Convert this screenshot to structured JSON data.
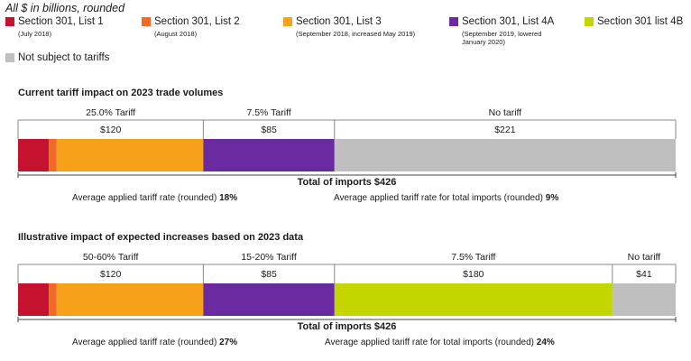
{
  "note": "All $ in billions, rounded",
  "colors": {
    "list1": "#c4122f",
    "list2": "#f26a21",
    "list3": "#f7a11a",
    "list4a": "#6a2aa0",
    "list4b": "#c3d600",
    "none": "#bfbfbf"
  },
  "legend": [
    {
      "label": "Section 301, List 1",
      "sub": "(July 2018)",
      "color_key": "list1"
    },
    {
      "label": "Section 301, List 2",
      "sub": "(August 2018)",
      "color_key": "list2"
    },
    {
      "label": "Section 301, List 3",
      "sub": "(September 2018, increased May 2019)",
      "color_key": "list3"
    },
    {
      "label": "Section 301, List 4A",
      "sub": "(September 2019, lowered January 2020)",
      "color_key": "list4a"
    },
    {
      "label": "Section 301 list 4B",
      "sub": "",
      "color_key": "list4b"
    },
    {
      "label": "Not subject to tariffs",
      "sub": "",
      "color_key": "none"
    }
  ],
  "chart_data": [
    {
      "type": "bar",
      "title": "Current tariff impact on 2023 trade volumes",
      "total": 426,
      "segments": [
        {
          "color_key": "list1",
          "value": 20
        },
        {
          "color_key": "list2",
          "value": 5
        },
        {
          "color_key": "list3",
          "value": 95
        },
        {
          "color_key": "list4a",
          "value": 85
        },
        {
          "color_key": "none",
          "value": 221
        }
      ],
      "groups": [
        {
          "label": "25.0% Tariff",
          "amount": "$120",
          "value": 120
        },
        {
          "label": "7.5% Tariff",
          "amount": "$85",
          "value": 85
        },
        {
          "label": "No tariff",
          "amount": "$221",
          "value": 221
        }
      ],
      "total_label": "Total of imports $426",
      "avg_rate_label": "Average applied tariff rate (rounded)",
      "avg_rate": "18%",
      "avg_total_label": "Average applied tariff rate for total imports (rounded)",
      "avg_total": "9%"
    },
    {
      "type": "bar",
      "title": "Illustrative impact of expected increases based on 2023 data",
      "total": 426,
      "segments": [
        {
          "color_key": "list1",
          "value": 20
        },
        {
          "color_key": "list2",
          "value": 5
        },
        {
          "color_key": "list3",
          "value": 95
        },
        {
          "color_key": "list4a",
          "value": 85
        },
        {
          "color_key": "list4b",
          "value": 180
        },
        {
          "color_key": "none",
          "value": 41
        }
      ],
      "groups": [
        {
          "label": "50-60% Tariff",
          "amount": "$120",
          "value": 120
        },
        {
          "label": "15-20% Tariff",
          "amount": "$85",
          "value": 85
        },
        {
          "label": "7.5% Tariff",
          "amount": "$180",
          "value": 180
        },
        {
          "label": "No tariff",
          "amount": "$41",
          "value": 41
        }
      ],
      "total_label": "Total of imports $426",
      "avg_rate_label": "Average applied tariff rate (rounded)",
      "avg_rate": "27%",
      "avg_total_label": "Average applied tariff rate for total imports (rounded)",
      "avg_total": "24%"
    }
  ]
}
